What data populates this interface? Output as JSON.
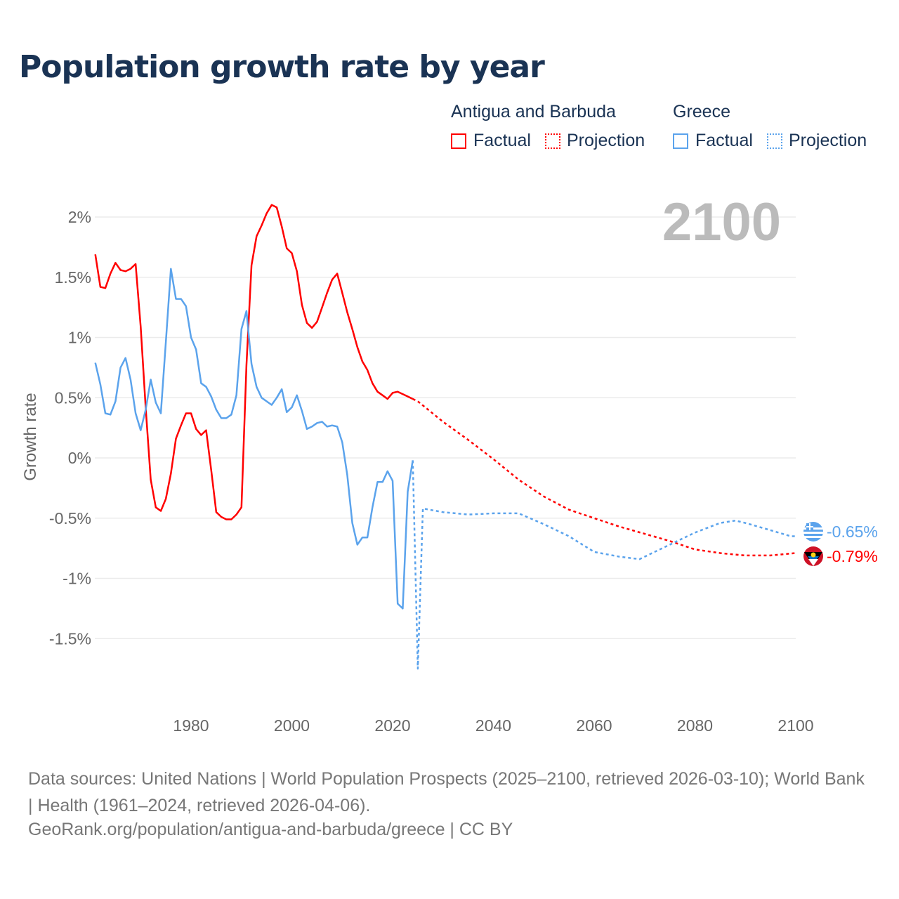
{
  "chart_data": {
    "type": "line",
    "title": "Population growth rate by year",
    "ylabel": "Growth rate",
    "xlabel": "",
    "xlim": [
      1961,
      2100
    ],
    "ylim": [
      -1.9,
      2.3
    ],
    "xticks": [
      1980,
      2000,
      2020,
      2040,
      2060,
      2080,
      2100
    ],
    "xtick_labels": [
      "1980",
      "2000",
      "2020",
      "2040",
      "2060",
      "2080",
      "2100"
    ],
    "yticks": [
      2,
      1.5,
      1,
      0.5,
      0,
      -0.5,
      -1,
      -1.5
    ],
    "ytick_labels": [
      "2%",
      "1.5%",
      "1%",
      "0.5%",
      "0%",
      "-0.5%",
      "-1%",
      "-1.5%"
    ],
    "year_label": "2100",
    "legend": {
      "groups": [
        {
          "country": "Antigua and Barbuda",
          "factual": "Factual",
          "projection": "Projection"
        },
        {
          "country": "Greece",
          "factual": "Factual",
          "projection": "Projection"
        }
      ]
    },
    "series": [
      {
        "name": "Antigua and Barbuda",
        "kind": "Factual",
        "color": "#ff0000",
        "start": 1961,
        "values": [
          1.69,
          1.42,
          1.41,
          1.53,
          1.62,
          1.56,
          1.55,
          1.57,
          1.61,
          1.09,
          0.42,
          -0.18,
          -0.41,
          -0.44,
          -0.34,
          -0.13,
          0.16,
          0.27,
          0.37,
          0.37,
          0.24,
          0.19,
          0.23,
          -0.1,
          -0.45,
          -0.49,
          -0.51,
          -0.51,
          -0.47,
          -0.41,
          0.77,
          1.6,
          1.84,
          1.93,
          2.03,
          2.1,
          2.08,
          1.92,
          1.74,
          1.7,
          1.55,
          1.27,
          1.12,
          1.08,
          1.13,
          1.25,
          1.37,
          1.48,
          1.53,
          1.37,
          1.21,
          1.07,
          0.92,
          0.8,
          0.73,
          0.62,
          0.55,
          0.52,
          0.49,
          0.54,
          0.55,
          0.53,
          0.51,
          0.49
        ]
      },
      {
        "name": "Antigua and Barbuda",
        "kind": "Projection",
        "color": "#ff0000",
        "x": [
          2024,
          2025,
          2030,
          2035,
          2040,
          2045,
          2050,
          2055,
          2060,
          2065,
          2070,
          2075,
          2080,
          2085,
          2090,
          2095,
          2100
        ],
        "values": [
          0.49,
          0.47,
          0.3,
          0.15,
          -0.01,
          -0.18,
          -0.32,
          -0.43,
          -0.5,
          -0.57,
          -0.63,
          -0.69,
          -0.76,
          -0.79,
          -0.81,
          -0.81,
          -0.79
        ]
      },
      {
        "name": "Greece",
        "kind": "Factual",
        "color": "#5ba3ec",
        "start": 1961,
        "values": [
          0.79,
          0.61,
          0.37,
          0.36,
          0.47,
          0.75,
          0.83,
          0.65,
          0.37,
          0.23,
          0.4,
          0.65,
          0.46,
          0.37,
          0.96,
          1.57,
          1.32,
          1.32,
          1.26,
          1.0,
          0.9,
          0.62,
          0.59,
          0.51,
          0.4,
          0.33,
          0.33,
          0.36,
          0.52,
          1.07,
          1.22,
          0.78,
          0.59,
          0.5,
          0.47,
          0.44,
          0.5,
          0.57,
          0.38,
          0.42,
          0.52,
          0.39,
          0.24,
          0.26,
          0.29,
          0.3,
          0.26,
          0.27,
          0.26,
          0.13,
          -0.14,
          -0.54,
          -0.72,
          -0.66,
          -0.66,
          -0.41,
          -0.2,
          -0.2,
          -0.11,
          -0.19,
          -1.21,
          -1.25,
          -0.28,
          -0.02
        ]
      },
      {
        "name": "Greece",
        "kind": "Projection",
        "color": "#5ba3ec",
        "x": [
          2024,
          2025,
          2026,
          2030,
          2035,
          2040,
          2045,
          2050,
          2055,
          2060,
          2065,
          2069,
          2075,
          2080,
          2085,
          2088,
          2090,
          2095,
          2099,
          2100
        ],
        "values": [
          -0.02,
          -1.75,
          -0.42,
          -0.45,
          -0.47,
          -0.46,
          -0.46,
          -0.55,
          -0.65,
          -0.78,
          -0.82,
          -0.84,
          -0.72,
          -0.62,
          -0.54,
          -0.52,
          -0.54,
          -0.6,
          -0.65,
          -0.65
        ]
      }
    ],
    "end_labels": {
      "greece": "-0.65%",
      "antigua": "-0.79%"
    }
  },
  "footer": {
    "sources": "Data sources: United Nations | World Population Prospects (2025–2100, retrieved 2026-03-10); World Bank | Health (1961–2024, retrieved 2026-04-06).",
    "link": "GeoRank.org/population/antigua-and-barbuda/greece | CC BY"
  }
}
